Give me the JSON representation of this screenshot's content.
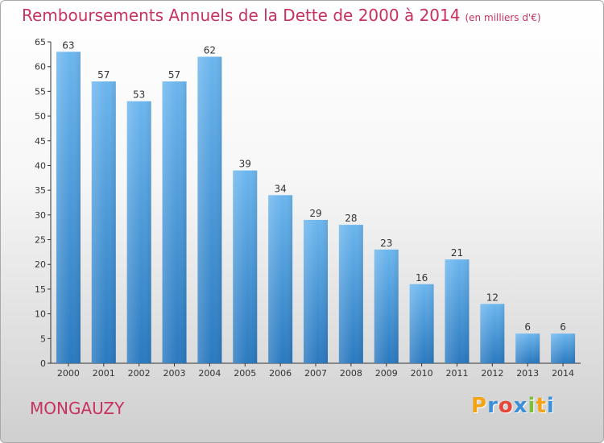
{
  "chart_data": {
    "type": "bar",
    "title": "Remboursements Annuels de la Dette de 2000 à 2014",
    "subtitle": "(en milliers d'€)",
    "categories": [
      "2000",
      "2001",
      "2002",
      "2003",
      "2004",
      "2005",
      "2006",
      "2007",
      "2008",
      "2009",
      "2010",
      "2011",
      "2012",
      "2013",
      "2014"
    ],
    "values": [
      63,
      57,
      53,
      57,
      62,
      39,
      34,
      29,
      28,
      23,
      16,
      21,
      12,
      6,
      6
    ],
    "ylim": [
      0,
      65
    ],
    "yticks": [
      0,
      5,
      10,
      15,
      20,
      25,
      30,
      35,
      40,
      45,
      50,
      55,
      60,
      65
    ],
    "grid": false,
    "xlabel": "",
    "ylabel": ""
  },
  "commune": "MONGAUZY",
  "logo": {
    "letters": [
      "P",
      "r",
      "o",
      "x",
      "i",
      "t",
      "i"
    ],
    "colors": [
      "#f5a316",
      "#3a8fd8",
      "#e9463a",
      "#3a8fd8",
      "#7cbf3a",
      "#f5a316",
      "#3a8fd8"
    ]
  },
  "colors": {
    "bar_light": "#66b2ec",
    "bar_dark": "#2a7bc0",
    "title": "#c8325e"
  }
}
